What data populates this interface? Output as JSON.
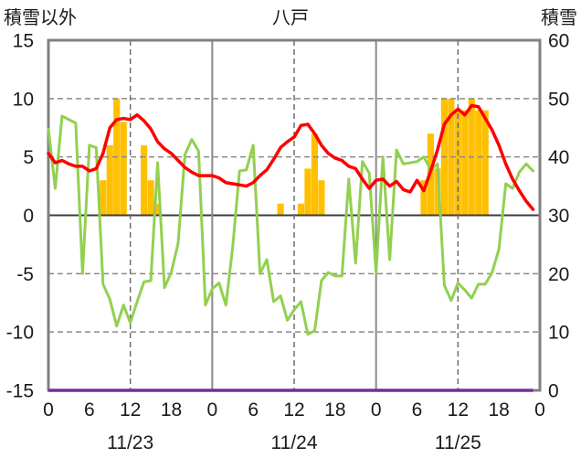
{
  "chart_data": {
    "type": "line",
    "title": "八戸",
    "ylabel": "積雪以外",
    "y2label": "積雪",
    "ylim": [
      -15,
      15
    ],
    "y2lim": [
      0,
      60
    ],
    "grid": true,
    "y_ticks": [
      "15",
      "10",
      "5",
      "0",
      "-5",
      "-10",
      "-15"
    ],
    "y2_ticks": [
      "60",
      "50",
      "40",
      "30",
      "20",
      "10",
      "0"
    ],
    "x_ticks": [
      "0",
      "6",
      "12",
      "18",
      "0",
      "6",
      "12",
      "18",
      "0",
      "6",
      "12",
      "18",
      "0"
    ],
    "dates": [
      "11/23",
      "11/24",
      "11/25"
    ],
    "x": [
      {
        "date": "11/23",
        "hour": 0
      },
      {
        "date": "11/23",
        "hour": 1
      },
      {
        "date": "11/23",
        "hour": 2
      },
      {
        "date": "11/23",
        "hour": 3
      },
      {
        "date": "11/23",
        "hour": 4
      },
      {
        "date": "11/23",
        "hour": 5
      },
      {
        "date": "11/23",
        "hour": 6
      },
      {
        "date": "11/23",
        "hour": 7
      },
      {
        "date": "11/23",
        "hour": 8
      },
      {
        "date": "11/23",
        "hour": 9
      },
      {
        "date": "11/23",
        "hour": 10
      },
      {
        "date": "11/23",
        "hour": 11
      },
      {
        "date": "11/23",
        "hour": 12
      },
      {
        "date": "11/23",
        "hour": 13
      },
      {
        "date": "11/23",
        "hour": 14
      },
      {
        "date": "11/23",
        "hour": 15
      },
      {
        "date": "11/23",
        "hour": 16
      },
      {
        "date": "11/23",
        "hour": 17
      },
      {
        "date": "11/23",
        "hour": 18
      },
      {
        "date": "11/23",
        "hour": 19
      },
      {
        "date": "11/23",
        "hour": 20
      },
      {
        "date": "11/23",
        "hour": 21
      },
      {
        "date": "11/23",
        "hour": 22
      },
      {
        "date": "11/23",
        "hour": 23
      },
      {
        "date": "11/24",
        "hour": 0
      },
      {
        "date": "11/24",
        "hour": 1
      },
      {
        "date": "11/24",
        "hour": 2
      },
      {
        "date": "11/24",
        "hour": 3
      },
      {
        "date": "11/24",
        "hour": 4
      },
      {
        "date": "11/24",
        "hour": 5
      },
      {
        "date": "11/24",
        "hour": 6
      },
      {
        "date": "11/24",
        "hour": 7
      },
      {
        "date": "11/24",
        "hour": 8
      },
      {
        "date": "11/24",
        "hour": 9
      },
      {
        "date": "11/24",
        "hour": 10
      },
      {
        "date": "11/24",
        "hour": 11
      },
      {
        "date": "11/24",
        "hour": 12
      },
      {
        "date": "11/24",
        "hour": 13
      },
      {
        "date": "11/24",
        "hour": 14
      },
      {
        "date": "11/24",
        "hour": 15
      },
      {
        "date": "11/24",
        "hour": 16
      },
      {
        "date": "11/24",
        "hour": 17
      },
      {
        "date": "11/24",
        "hour": 18
      },
      {
        "date": "11/24",
        "hour": 19
      },
      {
        "date": "11/24",
        "hour": 20
      },
      {
        "date": "11/24",
        "hour": 21
      },
      {
        "date": "11/24",
        "hour": 22
      },
      {
        "date": "11/24",
        "hour": 23
      },
      {
        "date": "11/25",
        "hour": 0
      },
      {
        "date": "11/25",
        "hour": 1
      },
      {
        "date": "11/25",
        "hour": 2
      },
      {
        "date": "11/25",
        "hour": 3
      },
      {
        "date": "11/25",
        "hour": 4
      },
      {
        "date": "11/25",
        "hour": 5
      },
      {
        "date": "11/25",
        "hour": 6
      },
      {
        "date": "11/25",
        "hour": 7
      },
      {
        "date": "11/25",
        "hour": 8
      },
      {
        "date": "11/25",
        "hour": 9
      },
      {
        "date": "11/25",
        "hour": 10
      },
      {
        "date": "11/25",
        "hour": 11
      },
      {
        "date": "11/25",
        "hour": 12
      },
      {
        "date": "11/25",
        "hour": 13
      },
      {
        "date": "11/25",
        "hour": 14
      },
      {
        "date": "11/25",
        "hour": 15
      },
      {
        "date": "11/25",
        "hour": 16
      },
      {
        "date": "11/25",
        "hour": 17
      },
      {
        "date": "11/25",
        "hour": 18
      },
      {
        "date": "11/25",
        "hour": 19
      },
      {
        "date": "11/25",
        "hour": 20
      },
      {
        "date": "11/25",
        "hour": 21
      },
      {
        "date": "11/25",
        "hour": 22
      },
      {
        "date": "11/25",
        "hour": 23
      }
    ],
    "series": [
      {
        "type": "bar",
        "axis": "left",
        "color": "#FFC000",
        "values": [
          null,
          null,
          null,
          null,
          null,
          null,
          null,
          null,
          3,
          6,
          10,
          8,
          null,
          null,
          6,
          3,
          1,
          null,
          null,
          null,
          null,
          null,
          null,
          null,
          null,
          null,
          null,
          null,
          null,
          null,
          null,
          null,
          null,
          null,
          1,
          null,
          null,
          1,
          4,
          7,
          3,
          null,
          null,
          null,
          null,
          null,
          null,
          null,
          null,
          null,
          null,
          null,
          null,
          null,
          null,
          3,
          7,
          4,
          10,
          10,
          9,
          9,
          10,
          9,
          9,
          null,
          null,
          null,
          null,
          null,
          null,
          null
        ]
      },
      {
        "type": "line",
        "axis": "left",
        "color": "#92D050",
        "values": [
          7.4,
          2.3,
          8.5,
          8.2,
          7.9,
          -5.0,
          6.0,
          5.8,
          -5.9,
          -7.2,
          -9.5,
          -7.7,
          -9.2,
          -7.4,
          -5.7,
          -5.6,
          4.5,
          -6.2,
          -4.9,
          -2.4,
          5.2,
          6.5,
          5.5,
          -7.7,
          -6.3,
          -5.8,
          -7.7,
          -2.7,
          3.8,
          3.9,
          6.0,
          -5.0,
          -3.8,
          -7.4,
          -6.9,
          -9.0,
          -8.1,
          -7.4,
          -10.2,
          -9.9,
          -5.6,
          -4.9,
          -5.2,
          -5.2,
          3.1,
          -4.1,
          4.6,
          3.6,
          -4.9,
          5.0,
          -3.8,
          5.6,
          4.4,
          4.5,
          4.6,
          5.0,
          3.9,
          4.4,
          -6.0,
          -7.3,
          -5.8,
          -6.4,
          -7.1,
          -5.9,
          -5.9,
          -4.9,
          -2.9,
          2.7,
          2.3,
          3.7,
          4.4,
          3.8
        ]
      },
      {
        "type": "line",
        "axis": "left",
        "color": "#FF0000",
        "values": [
          5.3,
          4.5,
          4.7,
          4.4,
          4.2,
          4.2,
          3.8,
          4.0,
          5.3,
          7.5,
          8.2,
          8.3,
          8.2,
          8.6,
          8.1,
          7.4,
          6.3,
          5.7,
          5.3,
          4.7,
          4.1,
          3.7,
          3.4,
          3.4,
          3.4,
          3.2,
          2.8,
          2.7,
          2.6,
          2.5,
          2.8,
          3.4,
          3.9,
          4.8,
          5.8,
          6.3,
          6.7,
          7.7,
          7.8,
          7.0,
          6.0,
          5.3,
          4.9,
          4.7,
          4.2,
          4.0,
          3.1,
          2.3,
          3.0,
          3.1,
          2.5,
          2.9,
          2.2,
          2.0,
          3.0,
          2.1,
          3.8,
          5.6,
          7.8,
          8.6,
          9.1,
          8.6,
          9.4,
          9.3,
          8.3,
          7.3,
          6.0,
          4.4,
          3.1,
          2.1,
          1.2,
          0.5
        ]
      },
      {
        "type": "line",
        "axis": "right",
        "color": "#7030A0",
        "values": [
          0,
          0,
          0,
          0,
          0,
          0,
          0,
          0,
          0,
          0,
          0,
          0,
          0,
          0,
          0,
          0,
          0,
          0,
          0,
          0,
          0,
          0,
          0,
          0,
          0,
          0,
          0,
          0,
          0,
          0,
          0,
          0,
          0,
          0,
          0,
          0,
          0,
          0,
          0,
          0,
          0,
          0,
          0,
          0,
          0,
          0,
          0,
          0,
          0,
          0,
          0,
          0,
          0,
          0,
          0,
          0,
          0,
          0,
          0,
          0,
          0,
          0,
          0,
          0,
          0,
          0,
          0,
          0,
          0,
          0,
          0,
          0
        ]
      }
    ]
  }
}
